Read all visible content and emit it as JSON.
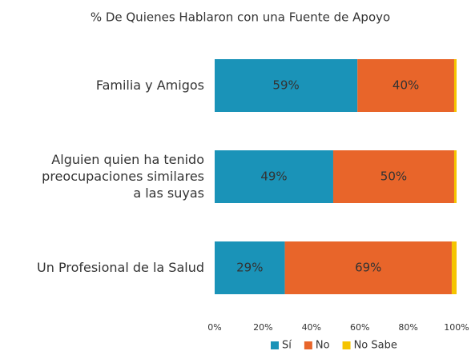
{
  "chart_data": {
    "type": "stacked_barh",
    "title": "% De Quienes Hablaron con una Fuente de Apoyo",
    "categories": [
      "Familia y Amigos",
      "Alguien quien ha tenido\npreocupaciones similares\na las suyas",
      "Un Profesional de la Salud"
    ],
    "series": [
      {
        "name": "Sí",
        "color": "#1a93b8",
        "values": [
          59,
          49,
          29
        ],
        "value_labels": [
          "59%",
          "49%",
          "29%"
        ]
      },
      {
        "name": "No",
        "color": "#e8652a",
        "values": [
          40,
          50,
          69
        ],
        "value_labels": [
          "40%",
          "50%",
          "69%"
        ]
      },
      {
        "name": "No Sabe",
        "color": "#f5c400",
        "values": [
          1,
          1,
          2
        ]
      }
    ],
    "xlim": [
      0,
      100
    ],
    "xticks": [
      {
        "value": 0,
        "label": "0%"
      },
      {
        "value": 20,
        "label": "20%"
      },
      {
        "value": 40,
        "label": "40%"
      },
      {
        "value": 60,
        "label": "60%"
      },
      {
        "value": 80,
        "label": "80%"
      },
      {
        "value": 100,
        "label": "100%"
      }
    ],
    "legend": "bottom"
  }
}
